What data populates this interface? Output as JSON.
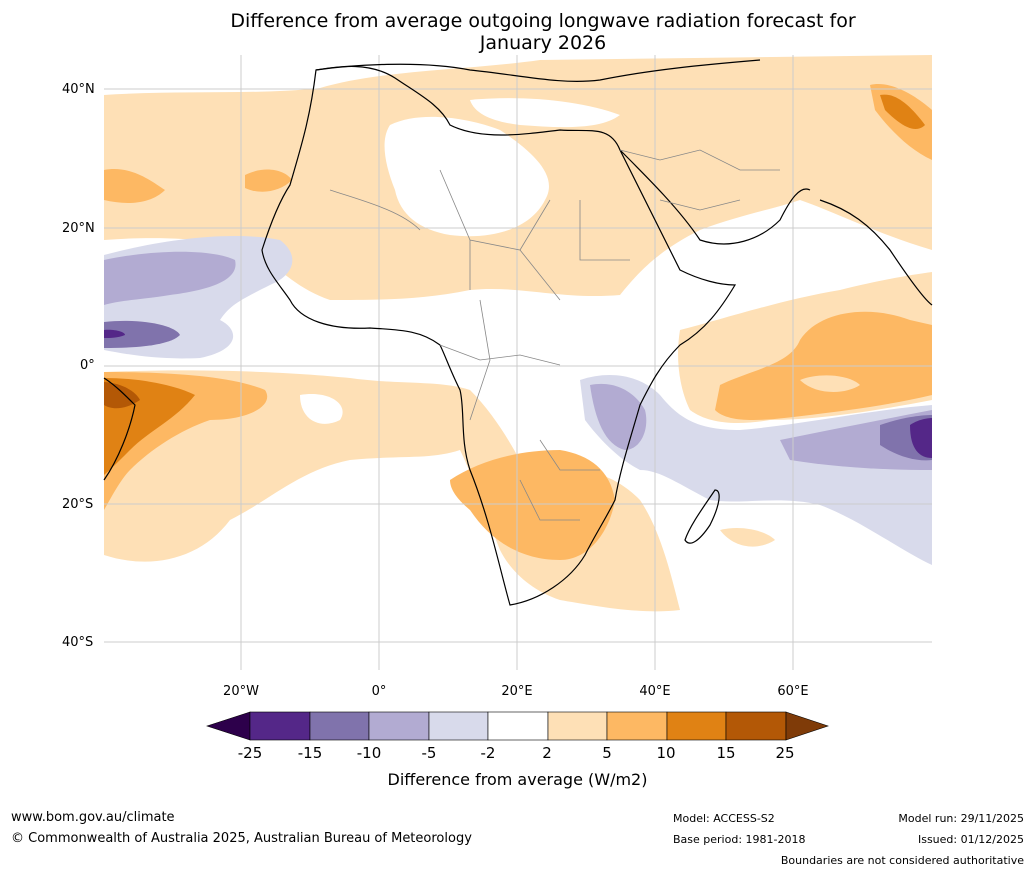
{
  "title_line1": "Difference from average outgoing longwave radiation forecast for",
  "title_line2": "January 2026",
  "lat_labels": [
    "40°N",
    "20°N",
    "0°",
    "20°S",
    "40°S"
  ],
  "lon_labels": [
    "20°W",
    "0°",
    "20°E",
    "40°E",
    "60°E"
  ],
  "legend": {
    "title": "Difference from average (W/m2)",
    "ticks": [
      "-25",
      "-15",
      "-10",
      "-5",
      "-2",
      "2",
      "5",
      "10",
      "15",
      "25"
    ],
    "colors": [
      "#2d004b",
      "#542788",
      "#8073ac",
      "#b2abd2",
      "#d8daeb",
      "#ffffff",
      "#fee0b6",
      "#fdb863",
      "#e08214",
      "#b35806",
      "#7f3b08"
    ]
  },
  "footer": {
    "website": "www.bom.gov.au/climate",
    "copyright": "© Commonwealth of Australia 2025, Australian Bureau of Meteorology",
    "model": "Model: ACCESS-S2",
    "base_period": "Base period: 1981-2018",
    "model_run": "Model run: 29/11/2025",
    "issued": "Issued: 01/12/2025",
    "disclaimer": "Boundaries are not considered authoritative"
  }
}
